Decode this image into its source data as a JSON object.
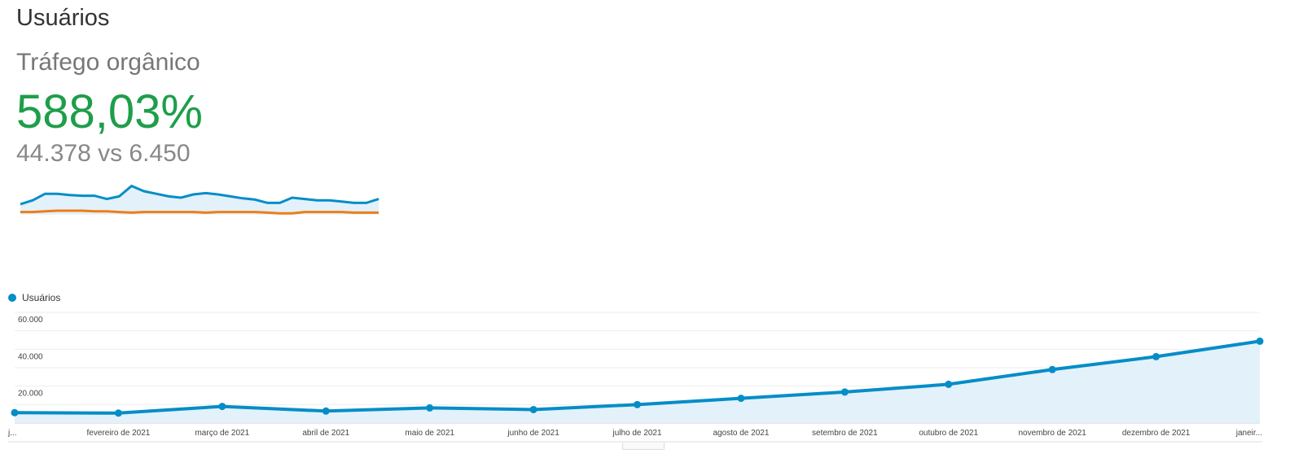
{
  "header": {
    "title": "Usuários"
  },
  "scorecard": {
    "segment": "Tráfego orgânico",
    "change": "588,03%",
    "comparison": "44.378 vs 6.450",
    "colors": {
      "change": "#1e9e4a",
      "current": "#058dc7",
      "previous": "#ed7e17"
    },
    "sparkline_current": [
      30,
      36,
      46,
      46,
      44,
      43,
      43,
      38,
      42,
      58,
      50,
      46,
      42,
      40,
      45,
      47,
      45,
      42,
      39,
      37,
      32,
      32,
      40,
      38,
      36,
      36,
      34,
      32,
      32,
      38
    ],
    "sparkline_previous": [
      18,
      18,
      19,
      20,
      20,
      20,
      19,
      19,
      18,
      17,
      18,
      18,
      18,
      18,
      18,
      17,
      18,
      18,
      18,
      18,
      17,
      16,
      16,
      18,
      18,
      18,
      18,
      17,
      17,
      17
    ]
  },
  "chart_data": {
    "type": "area",
    "legend": [
      {
        "name": "Usuários",
        "color": "#058dc7"
      }
    ],
    "legend_placement": "top-left",
    "categories": [
      "j...",
      "fevereiro de 2021",
      "março de 2021",
      "abril de 2021",
      "maio de 2021",
      "junho de 2021",
      "julho de 2021",
      "agosto de 2021",
      "setembro de 2021",
      "outubro de 2021",
      "novembro de 2021",
      "dezembro de 2021",
      "janeir..."
    ],
    "series": [
      {
        "name": "Usuários",
        "values": [
          5600,
          5400,
          9000,
          6500,
          8200,
          7300,
          10000,
          13400,
          16800,
          21000,
          29000,
          36000,
          44378
        ]
      }
    ],
    "ylim": [
      0,
      60000
    ],
    "yticks": [
      "60.000",
      "40.000",
      "20.000"
    ],
    "ytick_values": [
      60000,
      40000,
      20000
    ],
    "grid": true
  }
}
